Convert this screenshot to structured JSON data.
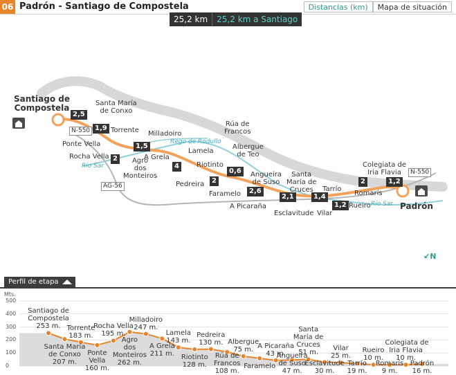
{
  "header": {
    "stage_number": "06",
    "title": "Padrón - Santiago de Compostela",
    "tab_distances": "Distancias (km)",
    "tab_situation": "Mapa de situación"
  },
  "distance": {
    "total": "25,2 km",
    "to_santiago": "25,2 km a Santiago"
  },
  "map": {
    "cities": {
      "santiago": "Santiago de\nCompostela",
      "padron": "Padrón"
    },
    "places": {
      "santa_maria_conxo": "Santa María\nde Conxo",
      "torrente": "Torrente",
      "milladoiro": "Milladoiro",
      "rua_francos": "Rúa de\nFrancos",
      "albergue_teo": "Albergue\nde Teo",
      "ponte_vella": "Ponte Vella",
      "rocha_vella": "Rocha Vella",
      "agro_monteiros": "Agro\ndos\nMonteiros",
      "a_grela": "A Grela",
      "lamela": "Lamela",
      "riotinto": "Riotinto",
      "pedreira": "Pedreira",
      "faramelo": "Faramelo",
      "angueira_suso": "Angueira\nde Suso",
      "santa_maria_cruces": "Santa\nMaría de\nCruces",
      "a_picarana": "A Picaraña",
      "esclavitude": "Esclavitude",
      "tarrio": "Tarrío",
      "vilar": "Vilar",
      "romaris": "Romarís",
      "rueiro": "Rueiro",
      "colegiata": "Colegiata de\nIria Flavia"
    },
    "rivers": {
      "rodullo": "Rego de Rodullo",
      "sar_1": "Río Sar",
      "sar_2": "Río Sar"
    },
    "roads": {
      "n550_w": "N-550",
      "n550_e": "N-550",
      "ag56": "AG-56"
    },
    "segments": [
      "2,5",
      "1,9",
      "1,5",
      "2",
      "4",
      "2",
      "0,6",
      "2,6",
      "2,1",
      "1,4",
      "1,2",
      "2",
      "1,2"
    ],
    "compass": "N"
  },
  "profile": {
    "tab_label": "Perfil de etapa",
    "unit": "Mts.",
    "y_ticks": [
      "500",
      "400",
      "300",
      "200",
      "100",
      "0"
    ],
    "chart_data": {
      "type": "area",
      "ylabel": "Mts.",
      "ylim": [
        0,
        500
      ],
      "points": [
        {
          "name": "Santiago de Compostela",
          "elev": 253
        },
        {
          "name": "Santa María de Conxo",
          "elev": 207
        },
        {
          "name": "Torrente",
          "elev": 183
        },
        {
          "name": "Ponte Vella",
          "elev": 160
        },
        {
          "name": "Rocha Vella",
          "elev": 195
        },
        {
          "name": "Agro dos Monteiros",
          "elev": 262
        },
        {
          "name": "Milladoiro",
          "elev": 247
        },
        {
          "name": "A Grela",
          "elev": 211
        },
        {
          "name": "Lamela",
          "elev": 143
        },
        {
          "name": "Riotinto",
          "elev": 128
        },
        {
          "name": "Pedreira",
          "elev": 130
        },
        {
          "name": "Rúa de Francos",
          "elev": 108
        },
        {
          "name": "Albergue",
          "elev": 75
        },
        {
          "name": "Faramelo",
          "elev": null
        },
        {
          "name": "A Picaraña",
          "elev": 43
        },
        {
          "name": "Angueira de Suso",
          "elev": 47
        },
        {
          "name": "Santa María de Cruces",
          "elev": 51
        },
        {
          "name": "Esclavitude",
          "elev": 30
        },
        {
          "name": "Vilar",
          "elev": 25
        },
        {
          "name": "Tarrío",
          "elev": 19
        },
        {
          "name": "Rueiro",
          "elev": 10
        },
        {
          "name": "Romarís",
          "elev": 9
        },
        {
          "name": "Colegiata de Iria Flavia",
          "elev": 10
        },
        {
          "name": "Padrón",
          "elev": 16
        }
      ]
    },
    "labels": {
      "santiago": "Santiago de\nCompostela\n253 m.",
      "conxo": "Santa María\nde Conxo\n207 m.",
      "torrente": "Torrente\n183 m.",
      "ponte_vella": "Ponte\nVella\n160 m.",
      "rocha_vella": "Rocha Vella\n195 m.",
      "agro": "Agro\ndos\nMonteiros\n262 m.",
      "milladoiro": "Milladoiro\n247 m.",
      "a_grela": "A Grela\n211 m.",
      "lamela": "Lamela\n143 m.",
      "riotinto": "Riotinto\n128 m.",
      "pedreira": "Pedreira\n130 m.",
      "rua_francos": "Rúa de\nFrancos\n108 m.",
      "albergue": "Albergue\n75 m.",
      "faramelo": "Faramelo",
      "picarana": "A Picaraña\n43 m.",
      "angueira": "Angueira\nde Suso\n47 m.",
      "cruces": "Santa\nMaría de\nCruces\n51 m.",
      "esclavitude": "Esclavitude\n30 m.",
      "vilar": "Vilar\n25 m.",
      "tarrio": "Tarrío\n19 m.",
      "rueiro": "Rueiro\n10 m.",
      "romaris": "Romarís\n9 m.",
      "colegiata": "Colegiata de\nIria Flavia\n10 m.",
      "padron": "Padrón\n16 m."
    }
  },
  "colors": {
    "accent": "#e8842a",
    "teal": "#2a9c8f",
    "dark": "#333333",
    "route": "#f2a25a",
    "river": "#8fd0dc"
  }
}
